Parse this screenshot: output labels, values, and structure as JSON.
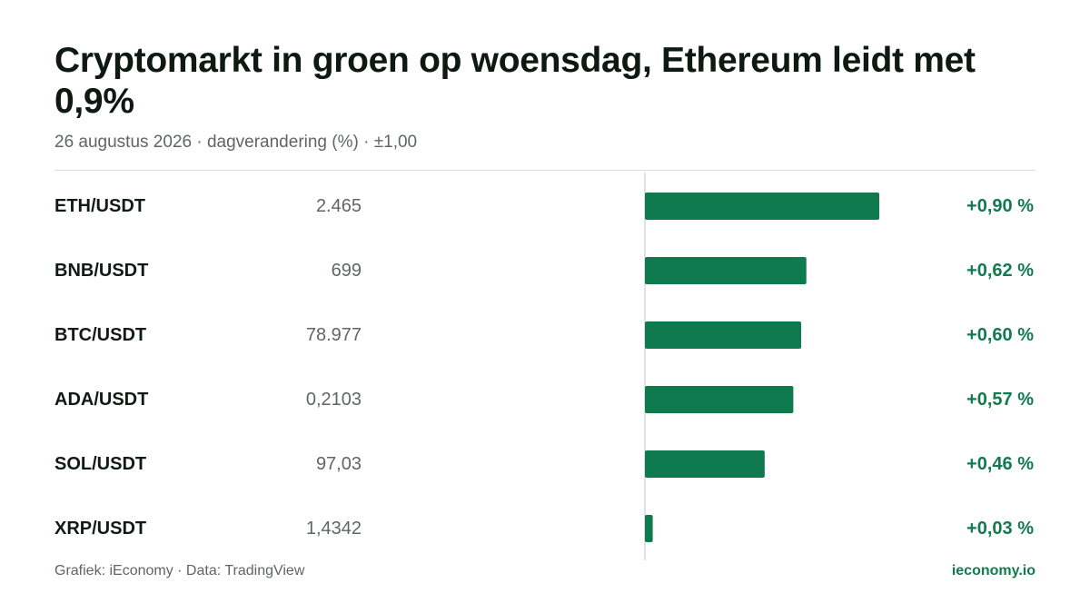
{
  "header": {
    "title": "Cryptomarkt in groen op woensdag, Ethereum leidt met 0,9%",
    "subtitle": "26 augustus 2026 · dagverandering (%) · ±1,00"
  },
  "footer": {
    "credit": "Grafiek: iEconomy · Data: TradingView",
    "brand": "ieconomy.io"
  },
  "colors": {
    "bar": "#0f7a4e",
    "positive_text": "#117a4e",
    "axis": "#d4d7d6"
  },
  "chart_data": {
    "type": "bar",
    "orientation": "horizontal",
    "categories": [
      "ETH/USDT",
      "BNB/USDT",
      "BTC/USDT",
      "ADA/USDT",
      "SOL/USDT",
      "XRP/USDT"
    ],
    "prices": [
      "2.465",
      "699",
      "78.977",
      "0,2103",
      "97,03",
      "1,4342"
    ],
    "values": [
      0.9,
      0.62,
      0.6,
      0.57,
      0.46,
      0.03
    ],
    "value_labels": [
      "+0,90 %",
      "+0,62 %",
      "+0,60 %",
      "+0,57 %",
      "+0,46 %",
      "+0,03 %"
    ],
    "xlim": [
      -1,
      1
    ],
    "grid": false
  }
}
